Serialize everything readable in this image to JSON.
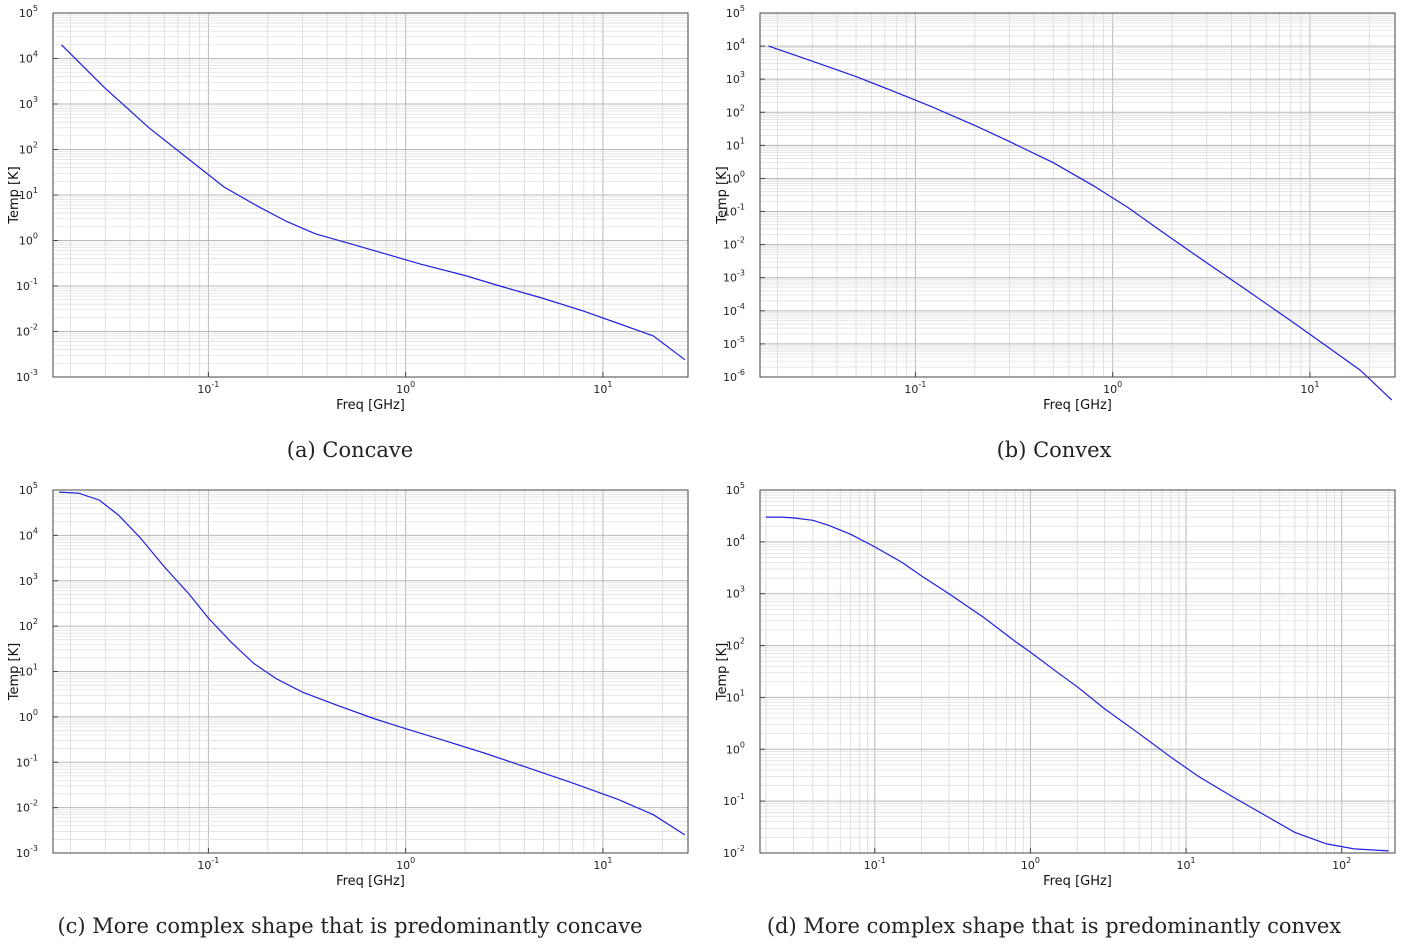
{
  "chart_data": [
    {
      "type": "line",
      "caption": "(a) Concave",
      "xlabel": "Freq [GHz]",
      "ylabel": "Temp [K]",
      "xscale": "log",
      "yscale": "log",
      "xlim": [
        0.0163,
        27
      ],
      "ylim_exp": [
        -3,
        5
      ],
      "grid": true,
      "xticks": [
        {
          "base": "10",
          "exp": "-1",
          "value": 0.1
        },
        {
          "base": "10",
          "exp": "0",
          "value": 1
        },
        {
          "base": "10",
          "exp": "1",
          "value": 10
        }
      ],
      "yticks": [
        {
          "base": "10",
          "exp": "-3",
          "value": -3
        },
        {
          "base": "10",
          "exp": "-2",
          "value": -2
        },
        {
          "base": "10",
          "exp": "-1",
          "value": -1
        },
        {
          "base": "10",
          "exp": "0",
          "value": 0
        },
        {
          "base": "10",
          "exp": "1",
          "value": 1
        },
        {
          "base": "10",
          "exp": "2",
          "value": 2
        },
        {
          "base": "10",
          "exp": "3",
          "value": 3
        },
        {
          "base": "10",
          "exp": "4",
          "value": 4
        },
        {
          "base": "10",
          "exp": "5",
          "value": 5
        }
      ],
      "series": [
        {
          "color": "#1f1fe0",
          "x": [
            0.018,
            0.03,
            0.05,
            0.08,
            0.12,
            0.18,
            0.25,
            0.35,
            0.5,
            0.8,
            1.2,
            2,
            3,
            5,
            8,
            12,
            18,
            26
          ],
          "y": [
            20000,
            2200,
            300,
            60,
            15,
            5.5,
            2.6,
            1.4,
            0.9,
            0.5,
            0.3,
            0.17,
            0.1,
            0.053,
            0.028,
            0.015,
            0.008,
            0.0024
          ]
        }
      ]
    },
    {
      "type": "line",
      "caption": "(b) Convex",
      "xlabel": "Freq [GHz]",
      "ylabel": "Temp [K]",
      "xscale": "log",
      "yscale": "log",
      "xlim": [
        0.0163,
        27
      ],
      "ylim_exp": [
        -6,
        5
      ],
      "grid": true,
      "xticks": [
        {
          "base": "10",
          "exp": "-1",
          "value": 0.1
        },
        {
          "base": "10",
          "exp": "0",
          "value": 1
        },
        {
          "base": "10",
          "exp": "1",
          "value": 10
        }
      ],
      "yticks": [
        {
          "base": "10",
          "exp": "-6",
          "value": -6
        },
        {
          "base": "10",
          "exp": "-5",
          "value": -5
        },
        {
          "base": "10",
          "exp": "-4",
          "value": -4
        },
        {
          "base": "10",
          "exp": "-3",
          "value": -3
        },
        {
          "base": "10",
          "exp": "-2",
          "value": -2
        },
        {
          "base": "10",
          "exp": "-1",
          "value": -1
        },
        {
          "base": "10",
          "exp": "0",
          "value": 0
        },
        {
          "base": "10",
          "exp": "1",
          "value": 1
        },
        {
          "base": "10",
          "exp": "2",
          "value": 2
        },
        {
          "base": "10",
          "exp": "3",
          "value": 3
        },
        {
          "base": "10",
          "exp": "4",
          "value": 4
        },
        {
          "base": "10",
          "exp": "5",
          "value": 5
        }
      ],
      "series": [
        {
          "color": "#1f1fe0",
          "x": [
            0.018,
            0.03,
            0.05,
            0.08,
            0.12,
            0.2,
            0.3,
            0.5,
            0.8,
            1.2,
            2,
            3,
            5,
            8,
            12,
            18,
            26
          ],
          "y": [
            10000,
            3500,
            1200,
            400,
            150,
            40,
            13,
            3,
            0.6,
            0.13,
            0.015,
            0.0028,
            0.00035,
            5e-05,
            9e-06,
            1.6e-06,
            2e-07
          ]
        }
      ]
    },
    {
      "type": "line",
      "caption": "(c) More complex shape that is predominantly concave",
      "xlabel": "Freq [GHz]",
      "ylabel": "Temp [K]",
      "xscale": "log",
      "yscale": "log",
      "xlim": [
        0.0163,
        27
      ],
      "ylim_exp": [
        -3,
        5
      ],
      "grid": true,
      "xticks": [
        {
          "base": "10",
          "exp": "-1",
          "value": 0.1
        },
        {
          "base": "10",
          "exp": "0",
          "value": 1
        },
        {
          "base": "10",
          "exp": "1",
          "value": 10
        }
      ],
      "yticks": [
        {
          "base": "10",
          "exp": "-3",
          "value": -3
        },
        {
          "base": "10",
          "exp": "-2",
          "value": -2
        },
        {
          "base": "10",
          "exp": "-1",
          "value": -1
        },
        {
          "base": "10",
          "exp": "0",
          "value": 0
        },
        {
          "base": "10",
          "exp": "1",
          "value": 1
        },
        {
          "base": "10",
          "exp": "2",
          "value": 2
        },
        {
          "base": "10",
          "exp": "3",
          "value": 3
        },
        {
          "base": "10",
          "exp": "4",
          "value": 4
        },
        {
          "base": "10",
          "exp": "5",
          "value": 5
        }
      ],
      "series": [
        {
          "color": "#1f1fe0",
          "x": [
            0.0175,
            0.022,
            0.028,
            0.035,
            0.045,
            0.06,
            0.08,
            0.1,
            0.13,
            0.17,
            0.22,
            0.3,
            0.45,
            0.7,
            1,
            1.5,
            2.5,
            4,
            7,
            12,
            18,
            26
          ],
          "y": [
            90000,
            85000,
            60000,
            28000,
            9000,
            2000,
            500,
            150,
            45,
            15,
            7,
            3.5,
            1.8,
            0.9,
            0.55,
            0.32,
            0.16,
            0.08,
            0.035,
            0.015,
            0.007,
            0.0025
          ]
        }
      ]
    },
    {
      "type": "line",
      "caption": "(d) More complex shape that is predominantly convex",
      "xlabel": "Freq [GHz]",
      "ylabel": "Temp [K]",
      "xscale": "log",
      "yscale": "log",
      "xlim": [
        0.0183,
        220
      ],
      "ylim_exp": [
        -2,
        5
      ],
      "grid": true,
      "xticks": [
        {
          "base": "10",
          "exp": "-1",
          "value": 0.1
        },
        {
          "base": "10",
          "exp": "0",
          "value": 1
        },
        {
          "base": "10",
          "exp": "1",
          "value": 10
        },
        {
          "base": "10",
          "exp": "2",
          "value": 100
        }
      ],
      "yticks": [
        {
          "base": "10",
          "exp": "-2",
          "value": -2
        },
        {
          "base": "10",
          "exp": "-1",
          "value": -1
        },
        {
          "base": "10",
          "exp": "0",
          "value": 0
        },
        {
          "base": "10",
          "exp": "1",
          "value": 1
        },
        {
          "base": "10",
          "exp": "2",
          "value": 2
        },
        {
          "base": "10",
          "exp": "3",
          "value": 3
        },
        {
          "base": "10",
          "exp": "4",
          "value": 4
        },
        {
          "base": "10",
          "exp": "5",
          "value": 5
        }
      ],
      "series": [
        {
          "color": "#1f1fe0",
          "x": [
            0.02,
            0.025,
            0.03,
            0.04,
            0.05,
            0.07,
            0.1,
            0.15,
            0.2,
            0.3,
            0.5,
            0.8,
            1,
            1.5,
            2,
            3,
            5,
            8,
            12,
            20,
            30,
            50,
            80,
            120,
            200
          ],
          "y": [
            30000,
            30000,
            29000,
            26000,
            21000,
            14000,
            8000,
            4000,
            2200,
            1000,
            350,
            120,
            75,
            30,
            16,
            6,
            2,
            0.7,
            0.3,
            0.12,
            0.06,
            0.025,
            0.015,
            0.012,
            0.011
          ]
        }
      ]
    }
  ]
}
